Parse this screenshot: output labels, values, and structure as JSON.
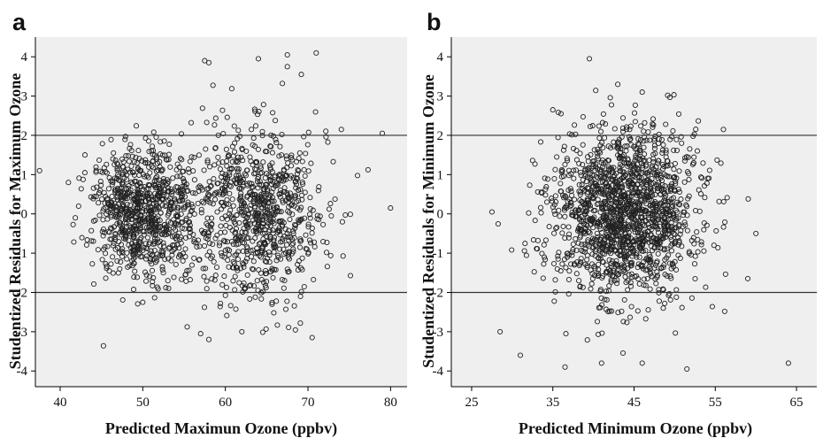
{
  "chart_data": [
    {
      "type": "scatter",
      "panel_label": "a",
      "xlabel": "Predicted  Maximun Ozone (ppbv)",
      "ylabel": "Studentized Residuals for Maximum Ozone",
      "xlim": [
        37,
        82
      ],
      "ylim": [
        -4.4,
        4.5
      ],
      "x_ticks": [
        40,
        50,
        60,
        70,
        80
      ],
      "y_ticks": [
        -4,
        -3,
        -2,
        -1,
        0,
        1,
        2,
        3,
        4
      ],
      "reference_lines_y": [
        2,
        -2
      ],
      "grid": false,
      "background": "#efefef",
      "marker": "open-circle",
      "cluster_centers": [
        50,
        64
      ],
      "cluster_spreads": [
        [
          3.2,
          0.8
        ],
        [
          4.2,
          1.1
        ]
      ],
      "x_range": [
        41,
        80
      ],
      "approx_point_count": 1700,
      "notable_points": [
        {
          "x": 37.5,
          "y": 1.1
        },
        {
          "x": 79,
          "y": 2.05
        },
        {
          "x": 80,
          "y": 0.15
        },
        {
          "x": 57.5,
          "y": 3.9
        },
        {
          "x": 58,
          "y": 3.85
        },
        {
          "x": 64,
          "y": 3.95
        },
        {
          "x": 67.5,
          "y": 4.05
        },
        {
          "x": 67.5,
          "y": 3.75
        },
        {
          "x": 71,
          "y": 4.1
        },
        {
          "x": 70.5,
          "y": -3.15
        },
        {
          "x": 58,
          "y": -3.2
        },
        {
          "x": 57,
          "y": -3.05
        },
        {
          "x": 62,
          "y": -3.0
        },
        {
          "x": 50,
          "y": -2.25
        },
        {
          "x": 43,
          "y": 1.5
        },
        {
          "x": 41,
          "y": 0.8
        }
      ]
    },
    {
      "type": "scatter",
      "panel_label": "b",
      "xlabel": "Predicted Minimum Ozone (ppbv)",
      "ylabel": "Studentized Residuals for Minimum Ozone",
      "xlim": [
        22.5,
        67.5
      ],
      "ylim": [
        -4.4,
        4.5
      ],
      "x_ticks": [
        25,
        35,
        45,
        55,
        65
      ],
      "y_ticks": [
        -4,
        -3,
        -2,
        -1,
        0,
        1,
        2,
        3,
        4
      ],
      "reference_lines_y": [
        2,
        -2
      ],
      "grid": false,
      "background": "#efefef",
      "marker": "open-circle",
      "cluster_centers": [
        44
      ],
      "cluster_spreads": [
        [
          4.6,
          1.05
        ]
      ],
      "x_range": [
        28,
        60
      ],
      "approx_point_count": 1600,
      "notable_points": [
        {
          "x": 27.5,
          "y": 0.05
        },
        {
          "x": 28.5,
          "y": -3.0
        },
        {
          "x": 31,
          "y": -3.6
        },
        {
          "x": 36.5,
          "y": -3.9
        },
        {
          "x": 41,
          "y": -3.8
        },
        {
          "x": 46,
          "y": -3.8
        },
        {
          "x": 51.5,
          "y": -3.95
        },
        {
          "x": 64,
          "y": -3.8
        },
        {
          "x": 39.5,
          "y": 3.95
        },
        {
          "x": 43,
          "y": 3.3
        },
        {
          "x": 46,
          "y": 3.1
        },
        {
          "x": 35,
          "y": 2.65
        },
        {
          "x": 36,
          "y": 2.55
        },
        {
          "x": 56,
          "y": 2.15
        },
        {
          "x": 59,
          "y": -1.65
        },
        {
          "x": 60,
          "y": -0.5
        }
      ]
    }
  ]
}
